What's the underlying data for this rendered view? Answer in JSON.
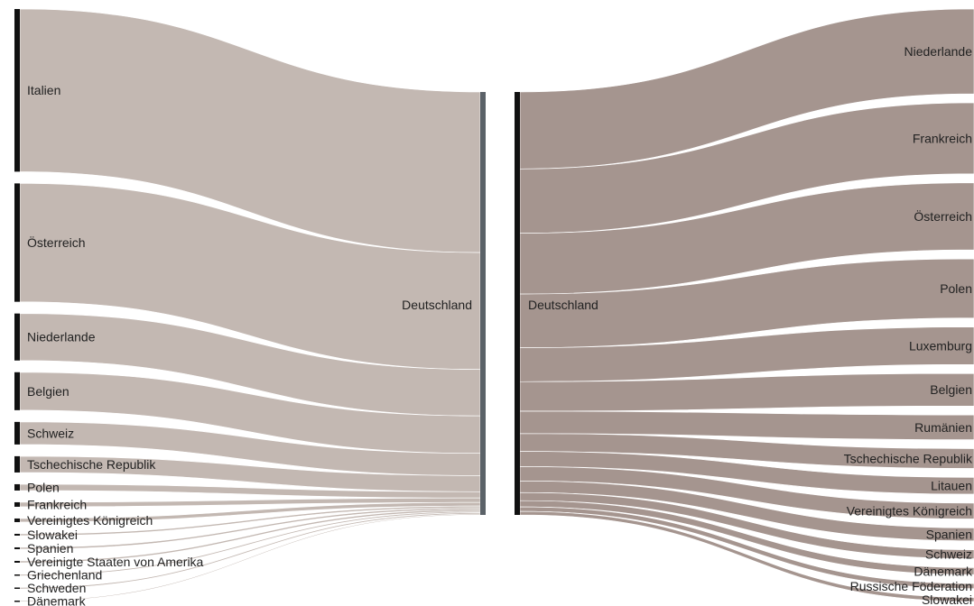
{
  "colors": {
    "import_link": "#c3b8b2",
    "export_link": "#a5958f",
    "node_bar": "#111111",
    "center_bar_left": "#5b6268",
    "text": "#222222"
  },
  "import_diagram": {
    "target": "Deutschland",
    "sources": [
      {
        "name": "Italien",
        "value": 180
      },
      {
        "name": "Österreich",
        "value": 131
      },
      {
        "name": "Niederlande",
        "value": 52
      },
      {
        "name": "Belgien",
        "value": 42
      },
      {
        "name": "Schweiz",
        "value": 25
      },
      {
        "name": "Tschechische Republik",
        "value": 18
      },
      {
        "name": "Polen",
        "value": 7
      },
      {
        "name": "Frankreich",
        "value": 5
      },
      {
        "name": "Vereinigtes Königreich",
        "value": 4
      },
      {
        "name": "Slowakei",
        "value": 2
      },
      {
        "name": "Spanien",
        "value": 2
      },
      {
        "name": "Vereinigte Staaten von Amerika",
        "value": 2
      },
      {
        "name": "Griechenland",
        "value": 1.5
      },
      {
        "name": "Schweden",
        "value": 1.5
      },
      {
        "name": "Dänemark",
        "value": 1
      }
    ]
  },
  "export_diagram": {
    "source": "Deutschland",
    "targets": [
      {
        "name": "Niederlande",
        "value": 86
      },
      {
        "name": "Frankreich",
        "value": 72
      },
      {
        "name": "Österreich",
        "value": 68
      },
      {
        "name": "Polen",
        "value": 60
      },
      {
        "name": "Luxemburg",
        "value": 38
      },
      {
        "name": "Belgien",
        "value": 33
      },
      {
        "name": "Rumänien",
        "value": 25
      },
      {
        "name": "Tschechische Republik",
        "value": 20
      },
      {
        "name": "Litauen",
        "value": 17
      },
      {
        "name": "Vereinigtes Königreich",
        "value": 16
      },
      {
        "name": "Spanien",
        "value": 13
      },
      {
        "name": "Schweiz",
        "value": 9
      },
      {
        "name": "Dänemark",
        "value": 7
      },
      {
        "name": "Russische Föderation",
        "value": 5
      },
      {
        "name": "Slowakei",
        "value": 4
      }
    ]
  }
}
